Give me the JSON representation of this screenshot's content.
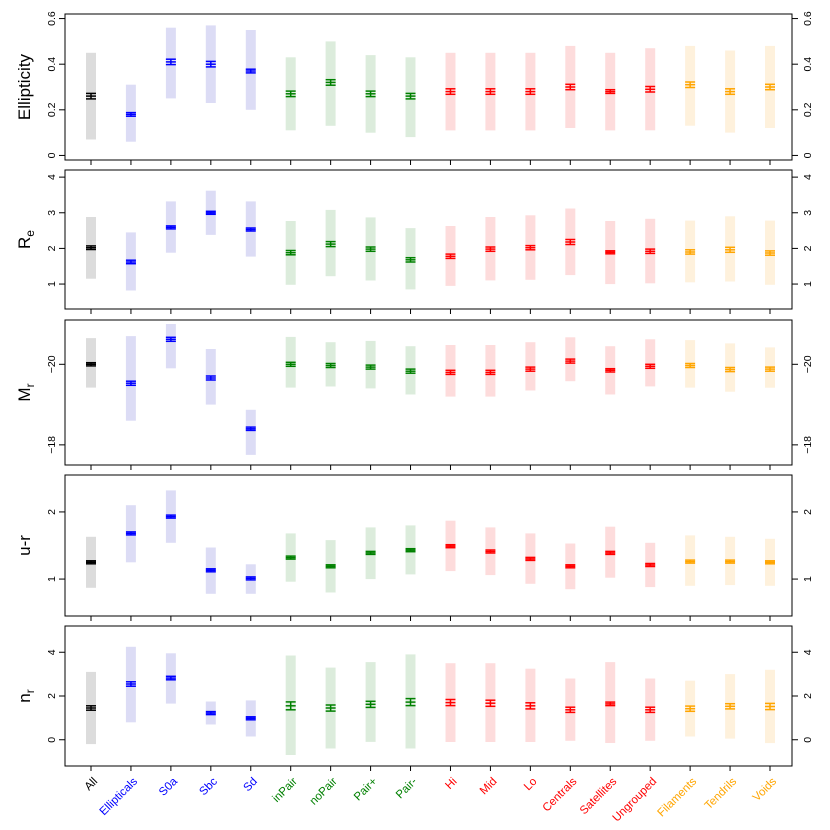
{
  "chart_data": {
    "type": "errorbar-panels",
    "categories": [
      "All",
      "Ellipticals",
      "S0a",
      "Sbc",
      "Sd",
      "inPair",
      "noPair",
      "Pair+",
      "Pair-",
      "Hi",
      "Mid",
      "Lo",
      "Centrals",
      "Satellites",
      "Ungrouped",
      "Filaments",
      "Tendrils",
      "Voids"
    ],
    "category_colors": [
      "#000000",
      "#0000ff",
      "#0000ff",
      "#0000ff",
      "#0000ff",
      "#008000",
      "#008000",
      "#008000",
      "#008000",
      "#ff0000",
      "#ff0000",
      "#ff0000",
      "#ff0000",
      "#ff0000",
      "#ff0000",
      "#ffa500",
      "#ffa500",
      "#ffa500"
    ],
    "band_colors": [
      "#dcdcdc",
      "#dcdcf5",
      "#dcdcf5",
      "#dcdcf5",
      "#dcdcf5",
      "#dcecdc",
      "#dcecdc",
      "#dcecdc",
      "#dcecdc",
      "#fddcdc",
      "#fddcdc",
      "#fddcdc",
      "#fddcdc",
      "#fddcdc",
      "#fddcdc",
      "#fef1dc",
      "#fef1dc",
      "#fef1dc"
    ],
    "panels": [
      {
        "ylabel": "Ellipticity",
        "ylabel_sub": "",
        "ylim": [
          -0.02,
          0.62
        ],
        "inverted": false,
        "yticks": [
          0,
          0.2,
          0.4,
          0.6
        ],
        "ytick_labels": [
          "0",
          "0.2",
          "0.4",
          "0.6"
        ],
        "values": [
          0.26,
          0.18,
          0.41,
          0.4,
          0.37,
          0.27,
          0.32,
          0.27,
          0.26,
          0.28,
          0.28,
          0.28,
          0.3,
          0.28,
          0.29,
          0.31,
          0.28,
          0.3
        ],
        "errors": [
          0.012,
          0.008,
          0.012,
          0.012,
          0.008,
          0.012,
          0.012,
          0.012,
          0.012,
          0.012,
          0.012,
          0.012,
          0.012,
          0.008,
          0.012,
          0.012,
          0.012,
          0.012
        ],
        "band_low": [
          0.07,
          0.06,
          0.25,
          0.23,
          0.2,
          0.11,
          0.13,
          0.1,
          0.08,
          0.11,
          0.11,
          0.11,
          0.12,
          0.11,
          0.11,
          0.13,
          0.1,
          0.12
        ],
        "band_high": [
          0.45,
          0.31,
          0.56,
          0.57,
          0.55,
          0.43,
          0.5,
          0.44,
          0.43,
          0.45,
          0.45,
          0.45,
          0.48,
          0.45,
          0.47,
          0.48,
          0.46,
          0.48
        ]
      },
      {
        "ylabel": "R",
        "ylabel_sub": "e",
        "ylim": [
          0.3,
          4.2
        ],
        "inverted": false,
        "yticks": [
          1,
          2,
          3,
          4
        ],
        "ytick_labels": [
          "1",
          "2",
          "3",
          "4"
        ],
        "values": [
          2.02,
          1.62,
          2.59,
          3.0,
          2.53,
          1.88,
          2.12,
          1.98,
          1.68,
          1.78,
          1.98,
          2.02,
          2.18,
          1.89,
          1.92,
          1.9,
          1.96,
          1.87
        ],
        "errors": [
          0.05,
          0.05,
          0.04,
          0.04,
          0.04,
          0.06,
          0.07,
          0.06,
          0.06,
          0.06,
          0.06,
          0.06,
          0.07,
          0.04,
          0.06,
          0.06,
          0.07,
          0.06
        ],
        "band_low": [
          1.15,
          0.82,
          1.88,
          2.38,
          1.77,
          0.98,
          1.22,
          1.1,
          0.85,
          0.95,
          1.1,
          1.12,
          1.25,
          1.0,
          1.02,
          1.05,
          1.07,
          0.98
        ],
        "band_high": [
          2.88,
          2.45,
          3.32,
          3.62,
          3.32,
          2.77,
          3.08,
          2.87,
          2.57,
          2.63,
          2.88,
          2.93,
          3.12,
          2.77,
          2.83,
          2.78,
          2.9,
          2.78
        ]
      },
      {
        "ylabel": "M",
        "ylabel_sub": "r",
        "ylim": [
          -21.1,
          -17.5
        ],
        "inverted": true,
        "yticks": [
          -18,
          -20
        ],
        "ytick_labels": [
          "−18",
          "−20"
        ],
        "values": [
          -20.0,
          -19.53,
          -20.62,
          -19.66,
          -18.4,
          -20.0,
          -19.97,
          -19.93,
          -19.83,
          -19.8,
          -19.8,
          -19.88,
          -20.08,
          -19.85,
          -19.95,
          -19.97,
          -19.87,
          -19.88
        ],
        "errors": [
          0.04,
          0.05,
          0.05,
          0.05,
          0.04,
          0.05,
          0.05,
          0.05,
          0.05,
          0.05,
          0.05,
          0.05,
          0.05,
          0.04,
          0.05,
          0.05,
          0.05,
          0.05
        ],
        "band_low": [
          -20.65,
          -20.7,
          -21.0,
          -20.38,
          -18.87,
          -20.68,
          -20.55,
          -20.58,
          -20.45,
          -20.48,
          -20.48,
          -20.55,
          -20.67,
          -20.45,
          -20.62,
          -20.6,
          -20.52,
          -20.42
        ],
        "band_high": [
          -19.42,
          -18.6,
          -19.9,
          -19.0,
          -17.75,
          -19.42,
          -19.45,
          -19.4,
          -19.25,
          -19.2,
          -19.2,
          -19.35,
          -19.58,
          -19.25,
          -19.45,
          -19.42,
          -19.32,
          -19.42
        ]
      },
      {
        "ylabel": "u-r",
        "ylabel_sub": "",
        "ylim": [
          0.45,
          2.55
        ],
        "inverted": false,
        "yticks": [
          1,
          2
        ],
        "ytick_labels": [
          "1",
          "2"
        ],
        "values": [
          1.25,
          1.68,
          1.93,
          1.13,
          1.01,
          1.32,
          1.19,
          1.39,
          1.43,
          1.49,
          1.41,
          1.3,
          1.19,
          1.39,
          1.21,
          1.26,
          1.26,
          1.25
        ],
        "errors": [
          0.02,
          0.02,
          0.02,
          0.02,
          0.015,
          0.02,
          0.02,
          0.02,
          0.02,
          0.02,
          0.02,
          0.02,
          0.02,
          0.015,
          0.02,
          0.02,
          0.02,
          0.02
        ],
        "band_low": [
          0.87,
          1.25,
          1.54,
          0.78,
          0.78,
          0.96,
          0.8,
          1.0,
          1.07,
          1.12,
          1.06,
          0.93,
          0.85,
          1.02,
          0.88,
          0.9,
          0.91,
          0.9
        ],
        "band_high": [
          1.63,
          2.1,
          2.32,
          1.47,
          1.22,
          1.68,
          1.58,
          1.77,
          1.8,
          1.87,
          1.77,
          1.68,
          1.53,
          1.78,
          1.54,
          1.65,
          1.63,
          1.6
        ]
      },
      {
        "ylabel": "n",
        "ylabel_sub": "r",
        "ylim": [
          -1.2,
          5.2
        ],
        "inverted": false,
        "yticks": [
          0,
          2,
          4
        ],
        "ytick_labels": [
          "0",
          "2",
          "4"
        ],
        "values": [
          1.45,
          2.55,
          2.82,
          1.22,
          0.98,
          1.55,
          1.45,
          1.62,
          1.72,
          1.7,
          1.67,
          1.55,
          1.37,
          1.64,
          1.37,
          1.42,
          1.53,
          1.52
        ],
        "errors": [
          0.1,
          0.1,
          0.08,
          0.06,
          0.06,
          0.18,
          0.14,
          0.14,
          0.16,
          0.14,
          0.14,
          0.14,
          0.12,
          0.08,
          0.12,
          0.12,
          0.12,
          0.14
        ],
        "band_low": [
          -0.2,
          0.8,
          1.65,
          0.7,
          0.15,
          -0.7,
          -0.4,
          -0.1,
          -0.4,
          -0.1,
          -0.1,
          -0.1,
          -0.05,
          -0.15,
          -0.05,
          0.15,
          0.05,
          -0.15
        ],
        "band_high": [
          3.1,
          4.25,
          3.95,
          1.75,
          1.8,
          3.85,
          3.3,
          3.55,
          3.9,
          3.5,
          3.5,
          3.25,
          2.8,
          3.55,
          2.8,
          2.7,
          3.0,
          3.2
        ]
      }
    ]
  }
}
